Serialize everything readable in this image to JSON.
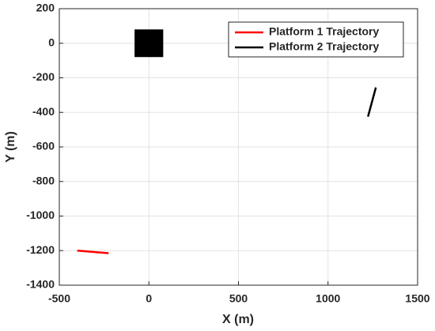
{
  "chart_data": {
    "type": "line",
    "xlabel": "X (m)",
    "ylabel": "Y (m)",
    "xlim": [
      -500,
      1500
    ],
    "xticks": [
      -500,
      0,
      500,
      1000,
      1500
    ],
    "ylim": [
      -1400,
      200
    ],
    "yticks": [
      -1400,
      -1200,
      -1000,
      -800,
      -600,
      -400,
      -200,
      0,
      200
    ],
    "grid": true,
    "legend": "upper right",
    "patch": {
      "x": [
        -80,
        80,
        80,
        -80
      ],
      "y": [
        80,
        80,
        -80,
        -80
      ],
      "color": "#000000"
    },
    "series": [
      {
        "name": "Platform 1 Trajectory",
        "color": "#ff0000",
        "x": [
          -400,
          -225
        ],
        "y": [
          -1200,
          -1215
        ]
      },
      {
        "name": "Platform 2 Trajectory",
        "color": "#000000",
        "x": [
          1223,
          1267
        ],
        "y": [
          -425,
          -256
        ]
      }
    ]
  }
}
